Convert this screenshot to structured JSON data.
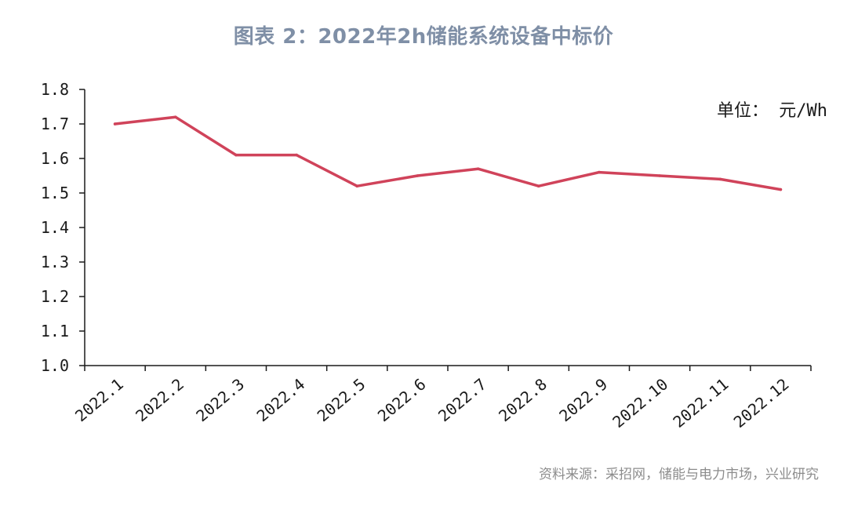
{
  "title": "图表 2：2022年2h储能系统设备中标价",
  "source": "资料来源：采招网，储能与电力市场，兴业研究",
  "colors": {
    "title": "#7f8fa6",
    "line": "#d0435a",
    "axis": "#1a1a1a",
    "source": "#8c8c8c"
  },
  "chart_data": {
    "type": "line",
    "title": "图表 2：2022年2h储能系统设备中标价",
    "unit_label": "单位： 元/Wh",
    "categories": [
      "2022.1",
      "2022.2",
      "2022.3",
      "2022.4",
      "2022.5",
      "2022.6",
      "2022.7",
      "2022.8",
      "2022.9",
      "2022.10",
      "2022.11",
      "2022.12"
    ],
    "series": [
      {
        "values": [
          1.7,
          1.72,
          1.61,
          1.61,
          1.52,
          1.55,
          1.57,
          1.52,
          1.56,
          1.55,
          1.54,
          1.51
        ]
      }
    ],
    "y_ticks": [
      "1.0",
      "1.1",
      "1.2",
      "1.3",
      "1.4",
      "1.5",
      "1.6",
      "1.7",
      "1.8"
    ],
    "ylim": [
      1.0,
      1.8
    ],
    "grid": false,
    "legend": "none"
  }
}
